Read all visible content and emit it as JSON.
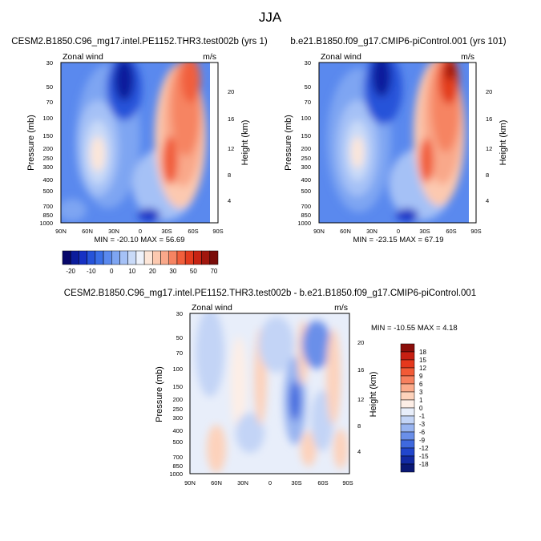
{
  "figure": {
    "title": "JJA"
  },
  "chart_data": [
    {
      "type": "heatmap",
      "panel": "model",
      "title": "CESM2.B1850.C96_mg17.intel.PE1152.THR3.test002b (yrs 1)",
      "left_label": "Zonal wind",
      "right_label": "m/s",
      "xlabel": "",
      "ylabel": "Pressure (mb)",
      "y2label": "Height (km)",
      "x_ticks": [
        "90N",
        "60N",
        "30N",
        "0",
        "30S",
        "60S",
        "90S"
      ],
      "y_ticks": [
        "30",
        "50",
        "70",
        "100",
        "150",
        "200",
        "250",
        "300",
        "400",
        "500",
        "700",
        "850",
        "1000"
      ],
      "y2_ticks": [
        "4",
        "8",
        "12",
        "16",
        "20"
      ],
      "min_max_text": "MIN = -20.10  MAX = 56.69",
      "min": -20.1,
      "max": 56.69,
      "xlim": [
        90,
        -90
      ],
      "ylim": [
        1000,
        30
      ]
    },
    {
      "type": "heatmap",
      "panel": "reference",
      "title": "b.e21.B1850.f09_g17.CMIP6-piControl.001 (yrs 101)",
      "left_label": "Zonal wind",
      "right_label": "m/s",
      "xlabel": "",
      "ylabel": "Pressure (mb)",
      "y2label": "Height (km)",
      "x_ticks": [
        "90N",
        "60N",
        "30N",
        "0",
        "30S",
        "60S",
        "90S"
      ],
      "y_ticks": [
        "30",
        "50",
        "70",
        "100",
        "150",
        "200",
        "250",
        "300",
        "400",
        "500",
        "700",
        "850",
        "1000"
      ],
      "y2_ticks": [
        "4",
        "8",
        "12",
        "16",
        "20"
      ],
      "min_max_text": "MIN = -23.15  MAX = 67.19",
      "min": -23.15,
      "max": 67.19,
      "xlim": [
        90,
        -90
      ],
      "ylim": [
        1000,
        30
      ]
    },
    {
      "type": "heatmap",
      "panel": "difference",
      "title": "CESM2.B1850.C96_mg17.intel.PE1152.THR3.test002b - b.e21.B1850.f09_g17.CMIP6-piControl.001",
      "left_label": "Zonal wind",
      "right_label": "m/s",
      "xlabel": "",
      "ylabel": "Pressure (mb)",
      "y2label": "Height (km)",
      "x_ticks": [
        "90N",
        "60N",
        "30N",
        "0",
        "30S",
        "60S",
        "90S"
      ],
      "y_ticks": [
        "30",
        "50",
        "70",
        "100",
        "150",
        "200",
        "250",
        "300",
        "400",
        "500",
        "700",
        "850",
        "1000"
      ],
      "y2_ticks": [
        "4",
        "8",
        "12",
        "16",
        "20"
      ],
      "min_max_text": "MIN = -10.55  MAX =   4.18",
      "min": -10.55,
      "max": 4.18,
      "xlim": [
        90,
        -90
      ],
      "ylim": [
        1000,
        30
      ]
    }
  ],
  "colorbar_top": {
    "levels": [
      -25,
      -20,
      -15,
      -10,
      -5,
      0,
      5,
      10,
      15,
      20,
      25,
      30,
      35,
      40,
      45,
      50,
      55,
      60,
      65,
      70,
      75
    ],
    "labels": [
      "-20",
      "-10",
      "0",
      "10",
      "20",
      "30",
      "50",
      "70"
    ],
    "colors": [
      "#08086b",
      "#0b1c9c",
      "#1631c4",
      "#2653d9",
      "#3a6ee6",
      "#5a89ee",
      "#7ea5f2",
      "#a5c1f6",
      "#c9daf8",
      "#eef2fb",
      "#fde6d8",
      "#fcc9b0",
      "#f9a88a",
      "#f68462",
      "#f15f3c",
      "#e33c1f",
      "#c72414",
      "#a1170e",
      "#7a0d0a"
    ]
  },
  "colorbar_diff": {
    "labels": [
      "18",
      "15",
      "12",
      "9",
      "6",
      "3",
      "1",
      "0",
      "-1",
      "-3",
      "-6",
      "-9",
      "-12",
      "-15",
      "-18"
    ],
    "colors": [
      "#8b0e0a",
      "#c71f12",
      "#e5381d",
      "#f25a36",
      "#f7805e",
      "#fbab8b",
      "#fdd2bb",
      "#fdeee6",
      "#e8eefa",
      "#c3d4f6",
      "#98b4f0",
      "#6a8fe9",
      "#3f69de",
      "#2146cc",
      "#122aa3",
      "#0a1875"
    ]
  }
}
